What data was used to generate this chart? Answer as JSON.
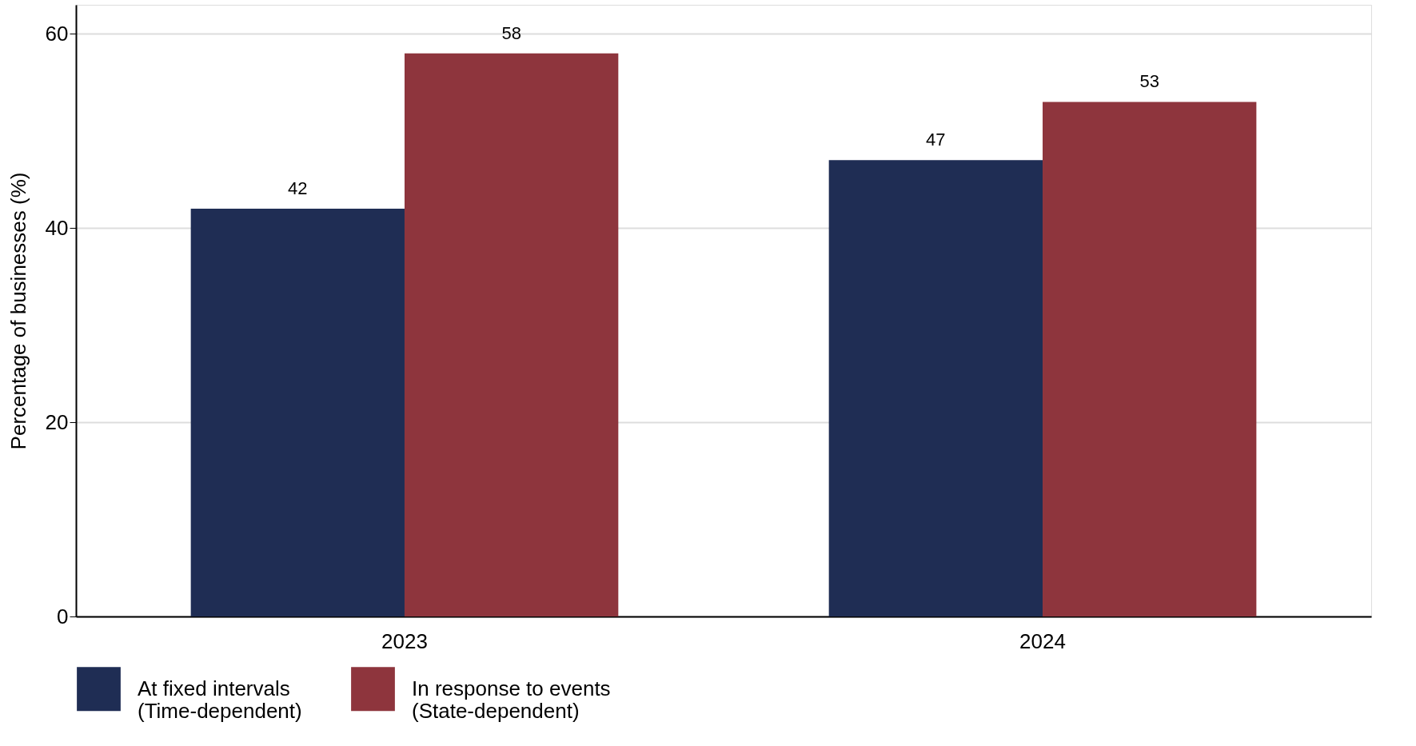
{
  "chart_data": {
    "type": "bar",
    "ylabel": "Percentage of businesses (%)",
    "categories": [
      "2023",
      "2024"
    ],
    "series": [
      {
        "name": "At fixed intervals\n(Time-dependent)",
        "color": "#1f2d54",
        "values": [
          42,
          47
        ]
      },
      {
        "name": "In response to events\n(State-dependent)",
        "color": "#8e353d",
        "values": [
          58,
          53
        ]
      }
    ],
    "ylim": [
      0,
      63
    ],
    "yticks": [
      0,
      20,
      40,
      60
    ],
    "grid": "y",
    "legend": "bottom",
    "data_labels": true
  }
}
